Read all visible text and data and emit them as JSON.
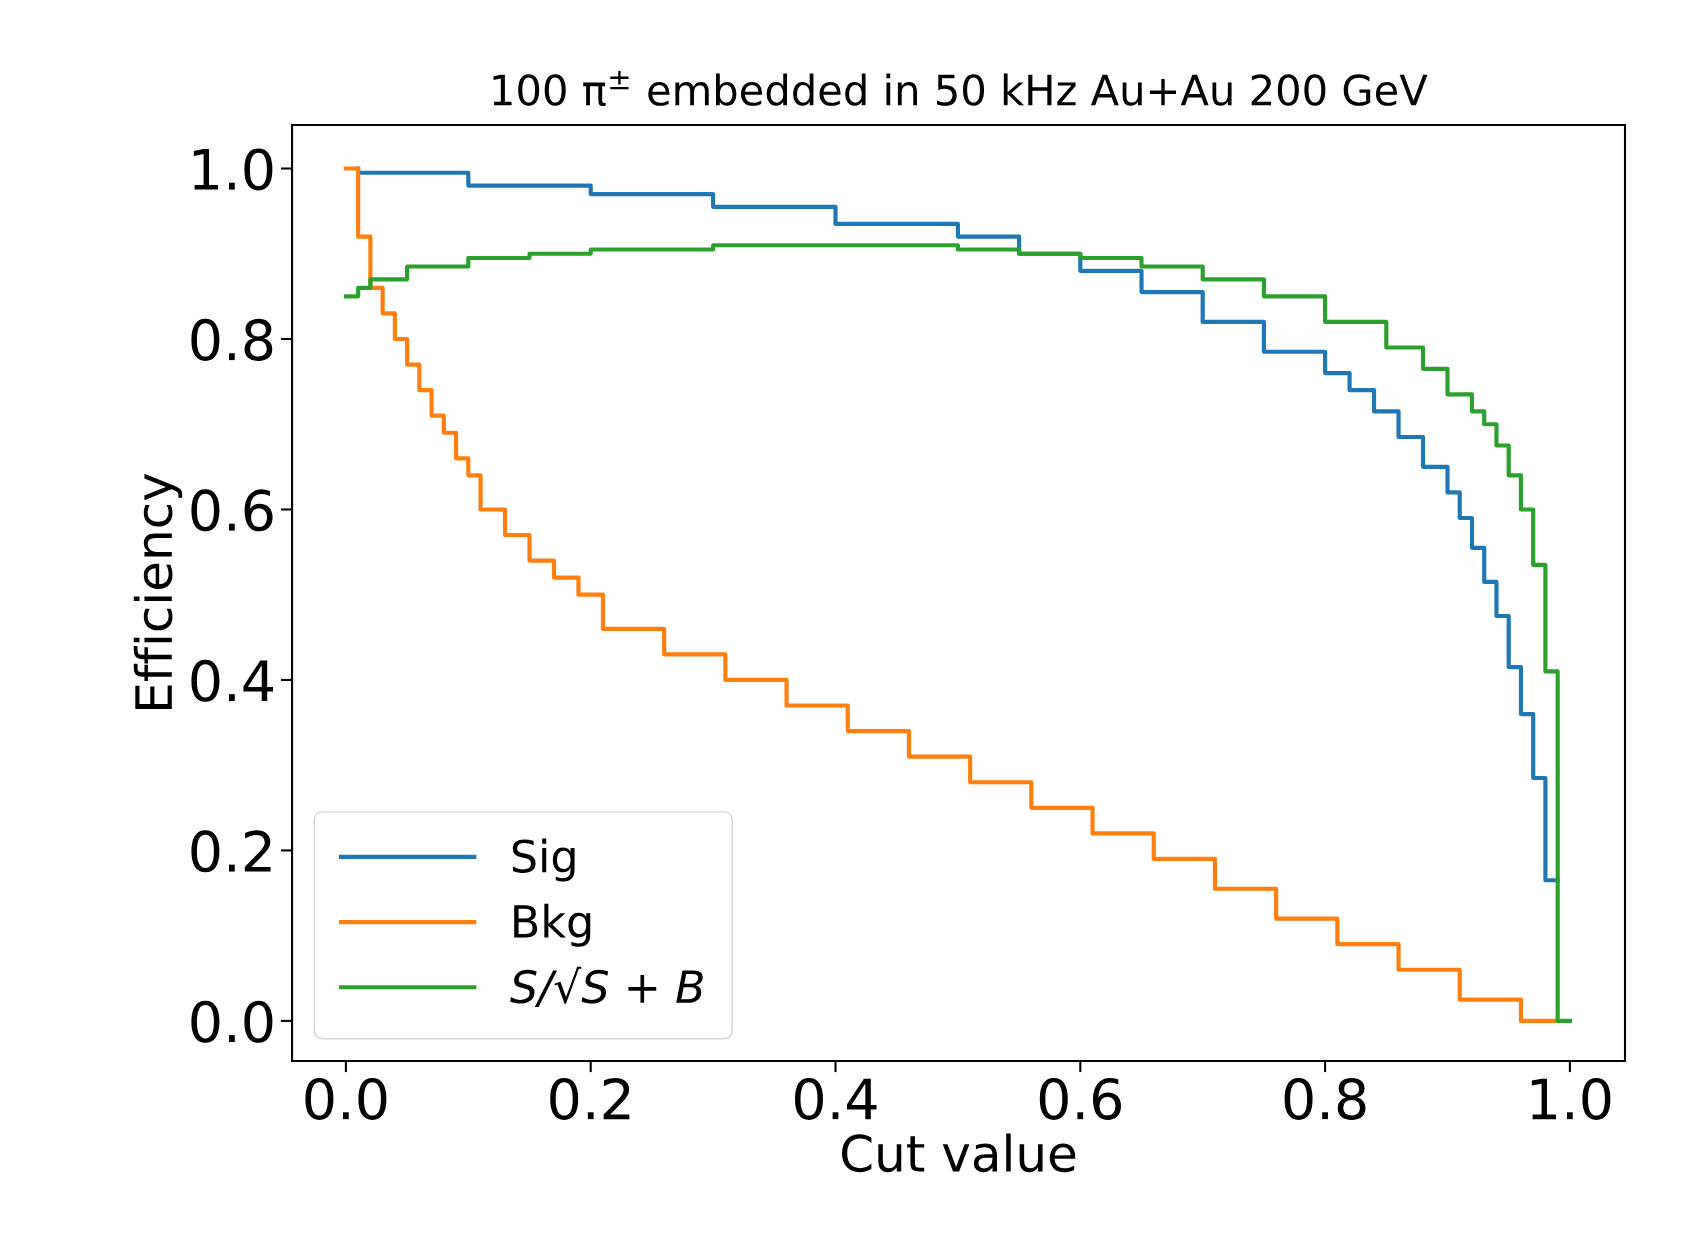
{
  "chart_data": {
    "type": "step",
    "title": "100 π$^{±}$ embedded in 50 kHz Au+Au 200 GeV",
    "xlabel": "Cut value",
    "ylabel": "Efficiency",
    "xlim": [
      -0.044,
      1.045
    ],
    "ylim": [
      -0.047,
      1.051
    ],
    "xticks": [
      {
        "value": 0,
        "label": "0.0"
      },
      0.2,
      0.4,
      0.6,
      0.8,
      {
        "value": 1,
        "label": "1.0"
      }
    ],
    "yticks": [
      {
        "value": 0,
        "label": "0.0"
      },
      0.2,
      0.4,
      0.6,
      0.8,
      {
        "value": 1,
        "label": "1.0"
      }
    ],
    "grid": false,
    "legend": "bottom left",
    "line_style": "solid",
    "series": [
      {
        "name": "Sig",
        "color": "#1f77b4",
        "x": [
          0.01,
          0.1,
          0.2,
          0.3,
          0.4,
          0.5,
          0.55,
          0.6,
          0.65,
          0.7,
          0.75,
          0.8,
          0.82,
          0.84,
          0.86,
          0.88,
          0.9,
          0.91,
          0.92,
          0.93,
          0.94,
          0.95,
          0.96,
          0.97,
          0.98,
          0.99
        ],
        "values": [
          1.0,
          0.995,
          0.98,
          0.97,
          0.955,
          0.935,
          0.92,
          0.9,
          0.88,
          0.855,
          0.82,
          0.785,
          0.76,
          0.74,
          0.715,
          0.685,
          0.65,
          0.62,
          0.59,
          0.555,
          0.515,
          0.475,
          0.415,
          0.36,
          0.285,
          0.165
        ]
      },
      {
        "name": "Bkg",
        "color": "#ff7f0e",
        "x": [
          0.0,
          0.01,
          0.02,
          0.03,
          0.04,
          0.05,
          0.06,
          0.07,
          0.08,
          0.09,
          0.1,
          0.11,
          0.13,
          0.15,
          0.17,
          0.19,
          0.21,
          0.26,
          0.31,
          0.36,
          0.41,
          0.46,
          0.51,
          0.56,
          0.61,
          0.66,
          0.71,
          0.76,
          0.81,
          0.86,
          0.91,
          0.96,
          0.99
        ],
        "values": [
          1.0,
          1.0,
          0.92,
          0.86,
          0.83,
          0.8,
          0.77,
          0.74,
          0.71,
          0.69,
          0.66,
          0.64,
          0.6,
          0.57,
          0.54,
          0.52,
          0.5,
          0.46,
          0.43,
          0.4,
          0.37,
          0.34,
          0.31,
          0.28,
          0.25,
          0.22,
          0.19,
          0.155,
          0.12,
          0.09,
          0.06,
          0.025,
          0.0
        ]
      },
      {
        "name": "S/√S + B",
        "color": "#2ca02c",
        "x": [
          0.0,
          0.01,
          0.02,
          0.05,
          0.1,
          0.15,
          0.2,
          0.3,
          0.4,
          0.5,
          0.55,
          0.6,
          0.65,
          0.7,
          0.75,
          0.8,
          0.85,
          0.88,
          0.9,
          0.92,
          0.93,
          0.94,
          0.95,
          0.96,
          0.97,
          0.98,
          0.99,
          1.0
        ],
        "values": [
          0.85,
          0.85,
          0.86,
          0.87,
          0.885,
          0.895,
          0.9,
          0.905,
          0.91,
          0.91,
          0.905,
          0.9,
          0.895,
          0.885,
          0.87,
          0.85,
          0.82,
          0.79,
          0.765,
          0.735,
          0.715,
          0.7,
          0.675,
          0.64,
          0.6,
          0.535,
          0.41,
          0.0
        ]
      }
    ]
  }
}
